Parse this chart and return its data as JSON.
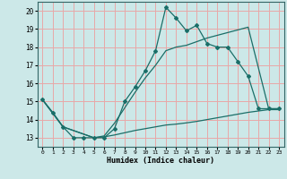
{
  "background_color": "#cce8e8",
  "grid_color": "#e8a8a8",
  "line_color": "#1a6e68",
  "xlabel": "Humidex (Indice chaleur)",
  "xlim": [
    -0.5,
    23.5
  ],
  "ylim": [
    12.5,
    20.5
  ],
  "xticks": [
    0,
    1,
    2,
    3,
    4,
    5,
    6,
    7,
    8,
    9,
    10,
    11,
    12,
    13,
    14,
    15,
    16,
    17,
    18,
    19,
    20,
    21,
    22,
    23
  ],
  "yticks": [
    13,
    14,
    15,
    16,
    17,
    18,
    19,
    20
  ],
  "line1_x": [
    0,
    1,
    2,
    3,
    4,
    5,
    6,
    7,
    8,
    9,
    10,
    11,
    12,
    13,
    14,
    15,
    16,
    17,
    18,
    19,
    20,
    21,
    22,
    23
  ],
  "line1_y": [
    15.1,
    14.4,
    13.6,
    13.0,
    13.0,
    13.0,
    13.0,
    13.5,
    15.0,
    15.8,
    16.7,
    17.8,
    20.2,
    19.6,
    18.9,
    19.2,
    18.2,
    18.0,
    18.0,
    17.2,
    16.4,
    14.6,
    14.6,
    14.6
  ],
  "line2_x": [
    0,
    2,
    5,
    6,
    7,
    9,
    10,
    11,
    12,
    13,
    14,
    15,
    16,
    17,
    18,
    19,
    20,
    22,
    23
  ],
  "line2_y": [
    15.1,
    13.6,
    13.0,
    13.1,
    13.8,
    15.5,
    16.3,
    17.0,
    17.8,
    18.0,
    18.1,
    18.3,
    18.5,
    18.65,
    18.8,
    18.95,
    19.1,
    14.6,
    14.6
  ],
  "line3_x": [
    0,
    2,
    5,
    6,
    7,
    9,
    10,
    11,
    12,
    13,
    14,
    15,
    16,
    17,
    18,
    19,
    20,
    22,
    23
  ],
  "line3_y": [
    15.1,
    13.6,
    13.0,
    13.05,
    13.15,
    13.4,
    13.5,
    13.6,
    13.7,
    13.75,
    13.82,
    13.9,
    14.0,
    14.1,
    14.2,
    14.3,
    14.4,
    14.55,
    14.55
  ]
}
